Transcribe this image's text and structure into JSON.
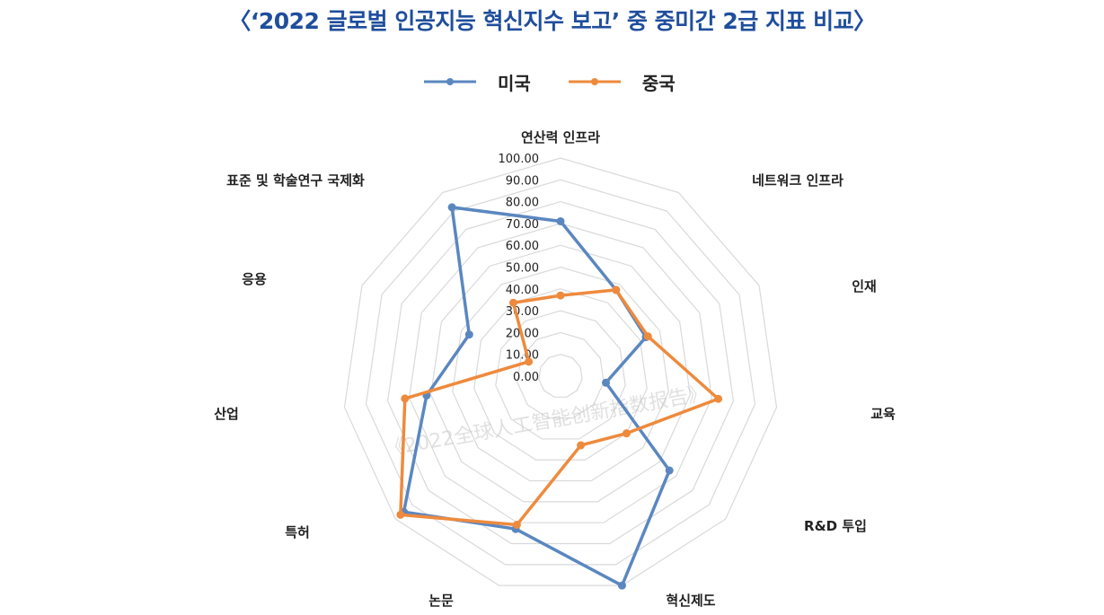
{
  "title": "〈‘2022 글로벌 인공지능 혁신지수 보고’ 중 중미간 2급 지표 비교〉",
  "watermark": "《2022全球人工智能创新指数报告》",
  "colors": {
    "usa": "#5b87c0",
    "china": "#ee8a3d",
    "grid": "#d9d9d9",
    "title": "#1f4e9c"
  },
  "chart_data": {
    "type": "radar",
    "axes": [
      "연산력 인프라",
      "네트워크 인프라",
      "인재",
      "교육",
      "R&D 투입",
      "혁신제도",
      "논문",
      "특허",
      "산업",
      "응용",
      "표준 및 학술연구 국제화"
    ],
    "rlim": [
      0,
      100
    ],
    "ticks": [
      "0.00",
      "10.00",
      "20.00",
      "30.00",
      "40.00",
      "50.00",
      "60.00",
      "70.00",
      "80.00",
      "90.00",
      "100.00"
    ],
    "tick_values": [
      0,
      10,
      20,
      30,
      40,
      50,
      60,
      70,
      80,
      90,
      100
    ],
    "series": [
      {
        "name": "미국",
        "values": [
          71,
          47,
          43,
          21,
          66,
          100,
          73,
          95,
          62,
          46,
          92
        ]
      },
      {
        "name": "중국",
        "values": [
          37,
          47,
          44,
          73,
          40,
          33,
          71,
          97,
          72,
          16,
          40
        ]
      }
    ],
    "legend_position": "top-center",
    "grid": true
  }
}
